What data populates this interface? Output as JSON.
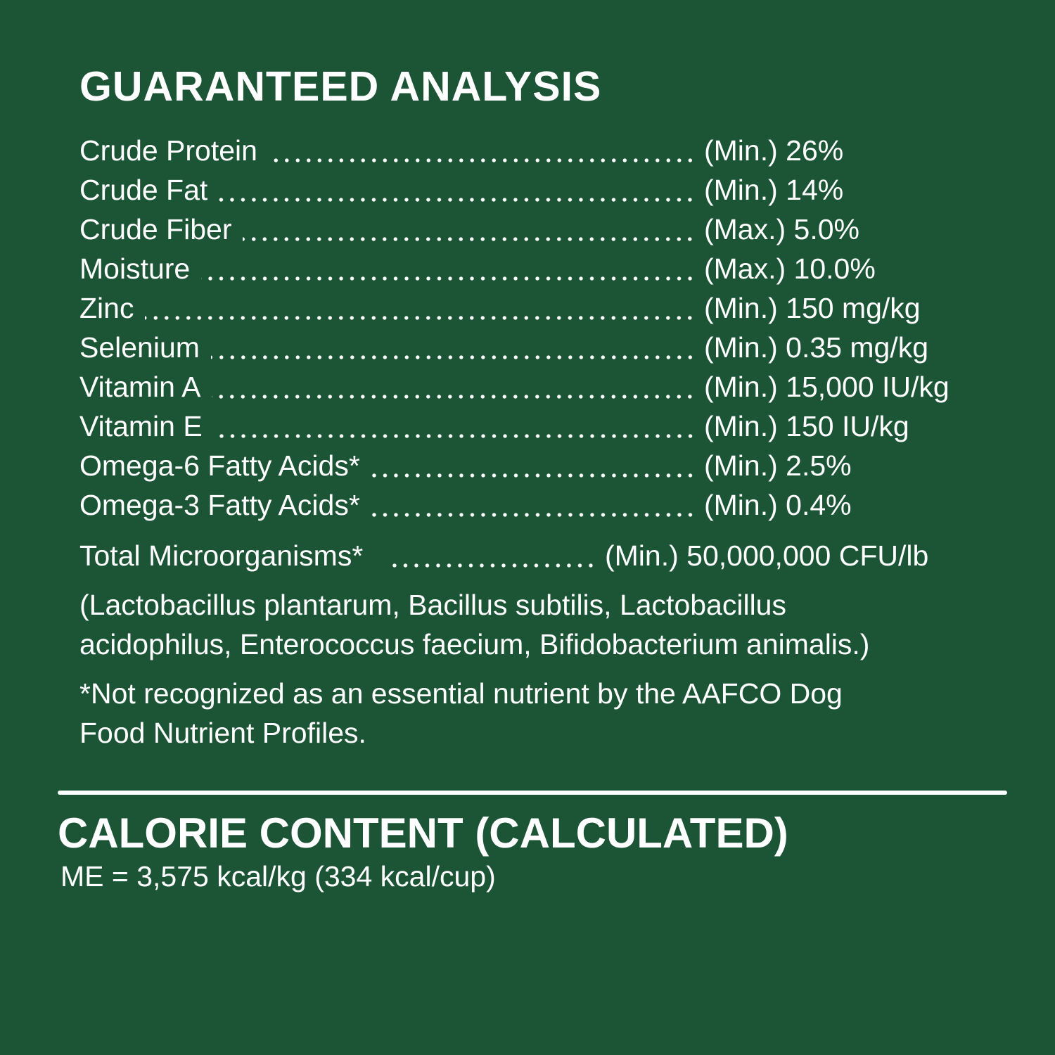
{
  "guaranteed_analysis": {
    "title": "GUARANTEED ANALYSIS",
    "rows": [
      {
        "label": "Crude Protein",
        "value": "(Min.) 26%"
      },
      {
        "label": "Crude Fat",
        "value": "(Min.) 14%"
      },
      {
        "label": "Crude Fiber",
        "value": "(Max.) 5.0%"
      },
      {
        "label": "Moisture",
        "value": "(Max.) 10.0%"
      },
      {
        "label": "Zinc",
        "value": "(Min.) 150 mg/kg"
      },
      {
        "label": "Selenium",
        "value": "(Min.) 0.35 mg/kg"
      },
      {
        "label": "Vitamin A",
        "value": "(Min.) 15,000 IU/kg"
      },
      {
        "label": "Vitamin E",
        "value": "(Min.) 150 IU/kg"
      },
      {
        "label": "Omega-6 Fatty Acids*",
        "value": "(Min.) 2.5%"
      },
      {
        "label": "Omega-3 Fatty Acids*",
        "value": "(Min.) 0.4%"
      }
    ],
    "microorganisms": {
      "label": "Total Microorganisms*",
      "value": "(Min.) 50,000,000 CFU/lb"
    },
    "strains": [
      "(Lactobacillus plantarum, Bacillus subtilis, Lactobacillus",
      "acidophilus, Enterococcus faecium, Bifidobacterium animalis.)"
    ],
    "footnote": [
      "*Not recognized as an essential nutrient by the AAFCO Dog",
      "Food Nutrient Profiles."
    ]
  },
  "calorie_content": {
    "title": "CALORIE CONTENT (CALCULATED)",
    "value": "ME = 3,575 kcal/kg (334 kcal/cup)"
  },
  "colors": {
    "background": "#1c5535",
    "text": "#ffffff"
  }
}
